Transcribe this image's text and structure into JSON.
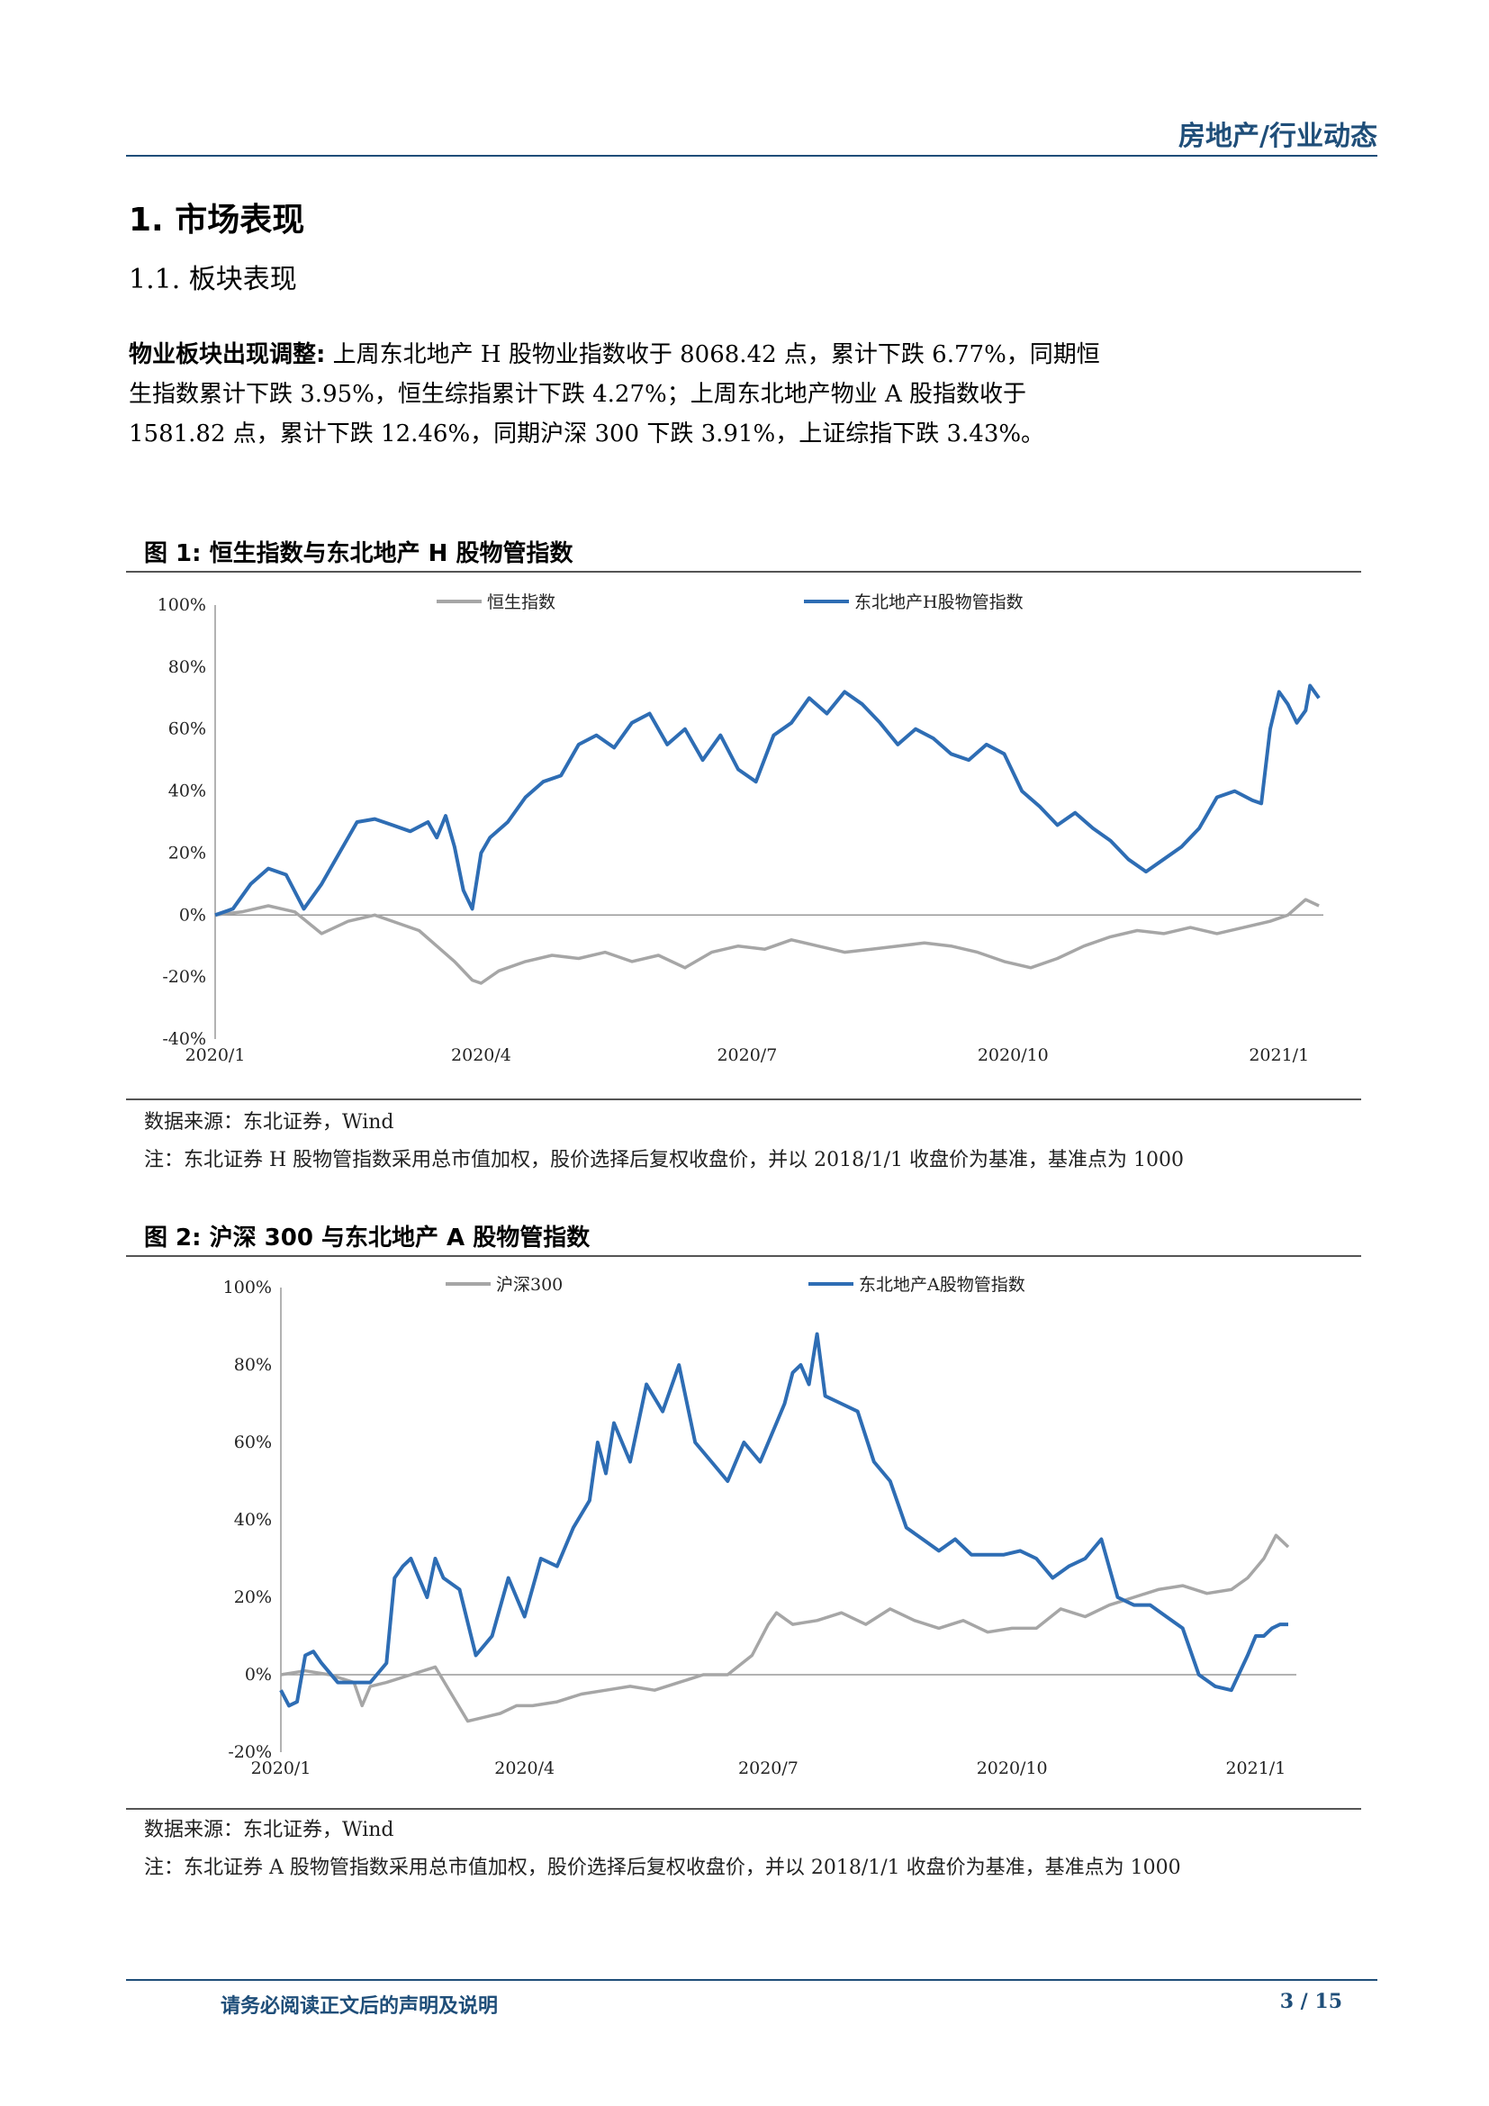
{
  "header": {
    "section": "房地产/行业动态"
  },
  "heading1": "1.  市场表现",
  "heading2": "1.1. 板块表现",
  "paragraph": {
    "lead": "物业板块出现调整:",
    "body": " 上周东北地产 H 股物业指数收于 8068.42 点，累计下跌 6.77%，同期恒生指数累计下跌 3.95%，恒生综指累计下跌 4.27%；上周东北地产物业 A 股指数收于 1581.82 点，累计下跌 12.46%，同期沪深 300 下跌 3.91%，上证综指下跌 3.43%。"
  },
  "figure1": {
    "title": "图 1:  恒生指数与东北地产 H 股物管指数",
    "source": "数据来源：东北证券，Wind",
    "note": "注：东北证券 H 股物管指数采用总市值加权，股价选择后复权收盘价，并以 2018/1/1 收盘价为基准，基准点为 1000"
  },
  "figure2": {
    "title": "图 2:  沪深 300 与东北地产 A 股物管指数",
    "source": "数据来源：东北证券，Wind",
    "note": "注：东北证券 A 股物管指数采用总市值加权，股价选择后复权收盘价，并以 2018/1/1 收盘价为基准，基准点为 1000"
  },
  "chart_data": [
    {
      "type": "line",
      "ylim": [
        -40,
        100
      ],
      "yticks": [
        "100%",
        "80%",
        "60%",
        "40%",
        "20%",
        "0%",
        "-20%",
        "-40%"
      ],
      "ytick_values": [
        100,
        80,
        60,
        40,
        20,
        0,
        -20,
        -40
      ],
      "xticks": [
        "2020/1",
        "2020/4",
        "2020/7",
        "2020/10",
        "2021/1"
      ],
      "xtick_values": [
        0,
        3,
        6,
        9,
        12
      ],
      "xlim": [
        0,
        12.5
      ],
      "legend_position": "top",
      "series": [
        {
          "name": "恒生指数",
          "color": "#a6a6a6",
          "x": [
            0,
            0.3,
            0.6,
            0.9,
            1.2,
            1.5,
            1.8,
            2.1,
            2.3,
            2.5,
            2.7,
            2.9,
            3.0,
            3.2,
            3.5,
            3.8,
            4.1,
            4.4,
            4.7,
            5.0,
            5.3,
            5.6,
            5.9,
            6.2,
            6.5,
            6.8,
            7.1,
            7.4,
            7.7,
            8.0,
            8.3,
            8.6,
            8.9,
            9.2,
            9.5,
            9.8,
            10.1,
            10.4,
            10.7,
            11.0,
            11.3,
            11.6,
            11.9,
            12.1,
            12.3,
            12.45
          ],
          "y": [
            0,
            1,
            3,
            1,
            -6,
            -2,
            0,
            -3,
            -5,
            -10,
            -15,
            -21,
            -22,
            -18,
            -15,
            -13,
            -14,
            -12,
            -15,
            -13,
            -17,
            -12,
            -10,
            -11,
            -8,
            -10,
            -12,
            -11,
            -10,
            -9,
            -10,
            -12,
            -15,
            -17,
            -14,
            -10,
            -7,
            -5,
            -6,
            -4,
            -6,
            -4,
            -2,
            0,
            5,
            3
          ]
        },
        {
          "name": "东北地产H股物管指数",
          "color": "#2e6db4",
          "x": [
            0,
            0.2,
            0.4,
            0.6,
            0.8,
            1.0,
            1.2,
            1.4,
            1.6,
            1.8,
            2.0,
            2.2,
            2.4,
            2.5,
            2.6,
            2.7,
            2.8,
            2.9,
            3.0,
            3.1,
            3.3,
            3.5,
            3.7,
            3.9,
            4.1,
            4.3,
            4.5,
            4.7,
            4.9,
            5.1,
            5.3,
            5.5,
            5.7,
            5.9,
            6.1,
            6.3,
            6.5,
            6.7,
            6.9,
            7.1,
            7.3,
            7.5,
            7.7,
            7.9,
            8.1,
            8.3,
            8.5,
            8.7,
            8.9,
            9.1,
            9.3,
            9.5,
            9.7,
            9.9,
            10.1,
            10.3,
            10.5,
            10.7,
            10.9,
            11.1,
            11.3,
            11.5,
            11.7,
            11.8,
            11.9,
            12.0,
            12.1,
            12.2,
            12.3,
            12.35,
            12.45
          ],
          "y": [
            0,
            2,
            10,
            15,
            13,
            2,
            10,
            20,
            30,
            31,
            29,
            27,
            30,
            25,
            32,
            22,
            8,
            2,
            20,
            25,
            30,
            38,
            43,
            45,
            55,
            58,
            54,
            62,
            65,
            55,
            60,
            50,
            58,
            47,
            43,
            58,
            62,
            70,
            65,
            72,
            68,
            62,
            55,
            60,
            57,
            52,
            50,
            55,
            52,
            40,
            35,
            29,
            33,
            28,
            24,
            18,
            14,
            18,
            22,
            28,
            38,
            40,
            37,
            36,
            60,
            72,
            68,
            62,
            66,
            74,
            70
          ]
        }
      ]
    },
    {
      "type": "line",
      "ylim": [
        -20,
        100
      ],
      "yticks": [
        "100%",
        "80%",
        "60%",
        "40%",
        "20%",
        "0%",
        "-20%"
      ],
      "ytick_values": [
        100,
        80,
        60,
        40,
        20,
        0,
        -20
      ],
      "xticks": [
        "2020/1",
        "2020/4",
        "2020/7",
        "2020/10",
        "2021/1"
      ],
      "xtick_values": [
        0,
        3,
        6,
        9,
        12
      ],
      "xlim": [
        0,
        12.5
      ],
      "legend_position": "top",
      "series": [
        {
          "name": "沪深300",
          "color": "#a6a6a6",
          "x": [
            0,
            0.3,
            0.6,
            0.9,
            1.0,
            1.1,
            1.3,
            1.6,
            1.9,
            2.1,
            2.3,
            2.5,
            2.7,
            2.9,
            3.1,
            3.4,
            3.7,
            4.0,
            4.3,
            4.6,
            4.9,
            5.2,
            5.5,
            5.8,
            6.0,
            6.1,
            6.3,
            6.6,
            6.9,
            7.2,
            7.5,
            7.8,
            8.1,
            8.4,
            8.7,
            9.0,
            9.3,
            9.6,
            9.9,
            10.2,
            10.5,
            10.8,
            11.1,
            11.4,
            11.7,
            11.9,
            12.1,
            12.25,
            12.4
          ],
          "y": [
            0,
            1,
            0,
            -2,
            -8,
            -3,
            -2,
            0,
            2,
            -5,
            -12,
            -11,
            -10,
            -8,
            -8,
            -7,
            -5,
            -4,
            -3,
            -4,
            -2,
            0,
            0,
            5,
            13,
            16,
            13,
            14,
            16,
            13,
            17,
            14,
            12,
            14,
            11,
            12,
            12,
            17,
            15,
            18,
            20,
            22,
            23,
            21,
            22,
            25,
            30,
            36,
            33
          ]
        },
        {
          "name": "东北地产A股物管指数",
          "color": "#2e6db4",
          "x": [
            0,
            0.1,
            0.2,
            0.3,
            0.4,
            0.5,
            0.7,
            0.9,
            1.1,
            1.3,
            1.4,
            1.5,
            1.6,
            1.8,
            1.9,
            2.0,
            2.2,
            2.4,
            2.6,
            2.8,
            3.0,
            3.2,
            3.4,
            3.6,
            3.8,
            3.9,
            4.0,
            4.1,
            4.3,
            4.5,
            4.7,
            4.9,
            5.1,
            5.3,
            5.5,
            5.7,
            5.9,
            6.1,
            6.2,
            6.3,
            6.4,
            6.5,
            6.6,
            6.7,
            6.9,
            7.1,
            7.3,
            7.5,
            7.7,
            7.9,
            8.1,
            8.3,
            8.5,
            8.7,
            8.9,
            9.1,
            9.3,
            9.5,
            9.7,
            9.9,
            10.1,
            10.3,
            10.5,
            10.7,
            10.9,
            11.1,
            11.3,
            11.5,
            11.7,
            11.9,
            12.0,
            12.1,
            12.2,
            12.3,
            12.4
          ],
          "y": [
            -4,
            -8,
            -7,
            5,
            6,
            3,
            -2,
            -2,
            -2,
            3,
            25,
            28,
            30,
            20,
            30,
            25,
            22,
            5,
            10,
            25,
            15,
            30,
            28,
            38,
            45,
            60,
            52,
            65,
            55,
            75,
            68,
            80,
            60,
            55,
            50,
            60,
            55,
            65,
            70,
            78,
            80,
            75,
            88,
            72,
            70,
            68,
            55,
            50,
            38,
            35,
            32,
            35,
            31,
            31,
            31,
            32,
            30,
            25,
            28,
            30,
            35,
            20,
            18,
            18,
            15,
            12,
            0,
            -3,
            -4,
            5,
            10,
            10,
            12,
            13,
            13
          ]
        }
      ]
    }
  ],
  "footer": {
    "disclaimer": "请务必阅读正文后的声明及说明",
    "page": "3  /  15"
  }
}
